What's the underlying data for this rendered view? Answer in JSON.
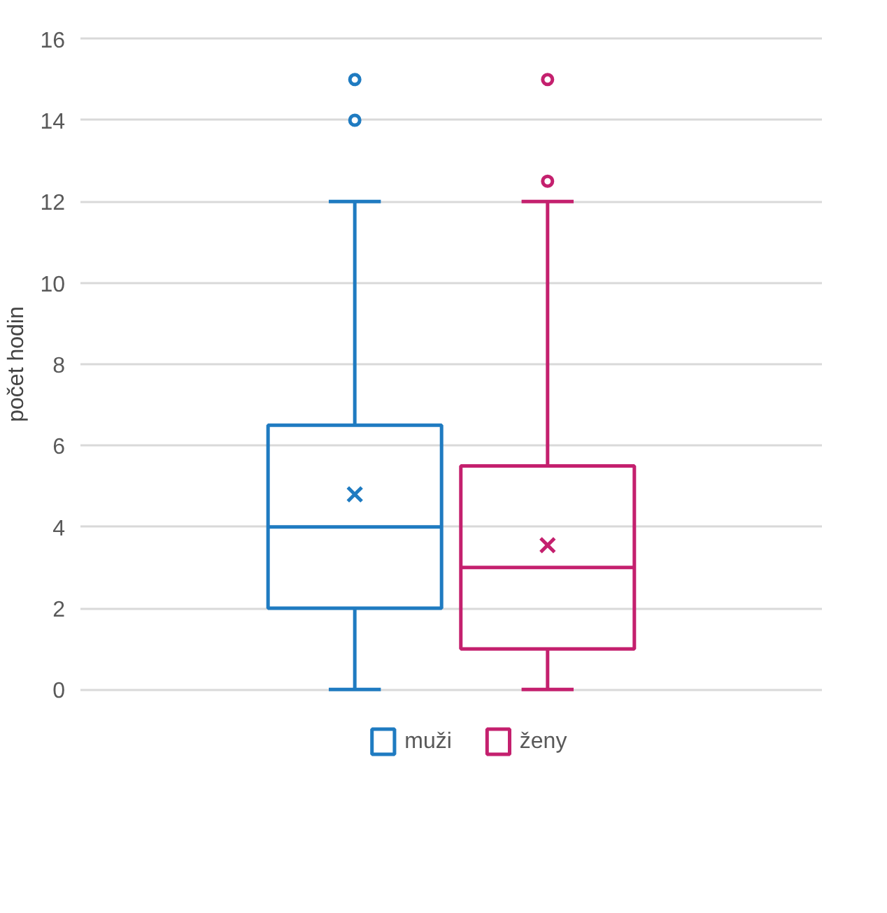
{
  "chart_data": {
    "type": "box",
    "ylabel": "počet hodin",
    "categories": [
      null
    ],
    "ylim": [
      0,
      16
    ],
    "yticks": [
      0,
      2,
      4,
      6,
      8,
      10,
      12,
      14,
      16
    ],
    "grid": "y",
    "legend": "bottom",
    "series": [
      {
        "name": "muži",
        "color": "#1f7bc1",
        "boxes": [
          {
            "low": 0,
            "q1": 2,
            "median": 4,
            "q3": 6.5,
            "high": 12,
            "mean": 4.8,
            "outliers": [
              14,
              15
            ]
          }
        ]
      },
      {
        "name": "ženy",
        "color": "#c4206e",
        "boxes": [
          {
            "low": 0,
            "q1": 1,
            "median": 3,
            "q3": 5.5,
            "high": 12,
            "mean": 3.55,
            "outliers": [
              12.5,
              15
            ]
          }
        ]
      }
    ]
  }
}
